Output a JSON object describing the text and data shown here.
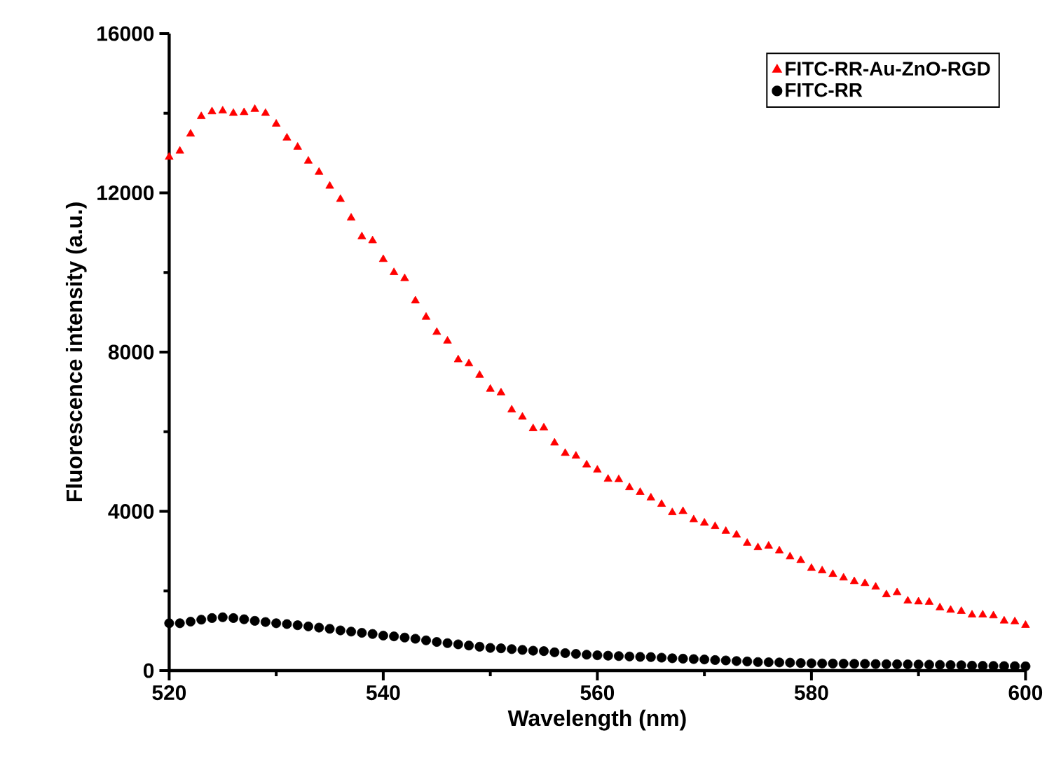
{
  "chart_data": {
    "type": "scatter",
    "xlabel": "Wavelength (nm)",
    "ylabel": "Fluorescence intensity (a.u.)",
    "xlim": [
      520,
      600
    ],
    "ylim": [
      0,
      16000
    ],
    "xticks": [
      520,
      540,
      560,
      580,
      600
    ],
    "yticks": [
      0,
      4000,
      8000,
      12000,
      16000
    ],
    "grid": false,
    "legend": "top right",
    "series": [
      {
        "name": "FITC-RR-Au-ZnO-RGD",
        "color": "#ff0000",
        "marker": "triangle",
        "x": [
          520,
          521,
          522,
          523,
          524,
          525,
          526,
          527,
          528,
          529,
          530,
          531,
          532,
          533,
          534,
          535,
          536,
          537,
          538,
          539,
          540,
          541,
          542,
          543,
          544,
          545,
          546,
          547,
          548,
          549,
          550,
          551,
          552,
          553,
          554,
          555,
          556,
          557,
          558,
          559,
          560,
          561,
          562,
          563,
          564,
          565,
          566,
          567,
          568,
          569,
          570,
          571,
          572,
          573,
          574,
          575,
          576,
          577,
          578,
          579,
          580,
          581,
          582,
          583,
          584,
          585,
          586,
          587,
          588,
          589,
          590,
          591,
          592,
          593,
          594,
          595,
          596,
          597,
          598,
          599,
          600
        ],
        "values": [
          12900,
          13050,
          13480,
          13920,
          14040,
          14060,
          14000,
          14020,
          14100,
          14000,
          13730,
          13380,
          13150,
          12800,
          12520,
          12170,
          11840,
          11370,
          10900,
          10800,
          10330,
          10000,
          9850,
          9290,
          8880,
          8500,
          8280,
          7810,
          7710,
          7420,
          7070,
          6980,
          6550,
          6370,
          6080,
          6100,
          5720,
          5460,
          5390,
          5170,
          5040,
          4810,
          4800,
          4600,
          4480,
          4340,
          4180,
          3970,
          4000,
          3790,
          3710,
          3620,
          3500,
          3410,
          3200,
          3090,
          3130,
          3010,
          2860,
          2770,
          2570,
          2510,
          2420,
          2330,
          2240,
          2190,
          2100,
          1910,
          1960,
          1750,
          1730,
          1720,
          1580,
          1520,
          1490,
          1400,
          1400,
          1380,
          1250,
          1230,
          1140
        ]
      },
      {
        "name": "FITC-RR",
        "color": "#000000",
        "marker": "circle",
        "x": [
          520,
          521,
          522,
          523,
          524,
          525,
          526,
          527,
          528,
          529,
          530,
          531,
          532,
          533,
          534,
          535,
          536,
          537,
          538,
          539,
          540,
          541,
          542,
          543,
          544,
          545,
          546,
          547,
          548,
          549,
          550,
          551,
          552,
          553,
          554,
          555,
          556,
          557,
          558,
          559,
          560,
          561,
          562,
          563,
          564,
          565,
          566,
          567,
          568,
          569,
          570,
          571,
          572,
          573,
          574,
          575,
          576,
          577,
          578,
          579,
          580,
          581,
          582,
          583,
          584,
          585,
          586,
          587,
          588,
          589,
          590,
          591,
          592,
          593,
          594,
          595,
          596,
          597,
          598,
          599,
          600
        ],
        "values": [
          1190,
          1190,
          1230,
          1280,
          1320,
          1340,
          1320,
          1290,
          1250,
          1220,
          1190,
          1170,
          1140,
          1110,
          1080,
          1050,
          1010,
          980,
          950,
          920,
          880,
          860,
          830,
          800,
          760,
          720,
          690,
          660,
          630,
          600,
          570,
          560,
          540,
          520,
          500,
          490,
          460,
          440,
          420,
          400,
          385,
          375,
          365,
          355,
          345,
          340,
          325,
          310,
          300,
          290,
          280,
          265,
          255,
          240,
          230,
          215,
          210,
          205,
          200,
          190,
          185,
          180,
          178,
          175,
          172,
          170,
          165,
          162,
          160,
          157,
          154,
          150,
          145,
          140,
          135,
          125,
          120,
          118,
          115,
          112,
          108
        ]
      }
    ]
  }
}
